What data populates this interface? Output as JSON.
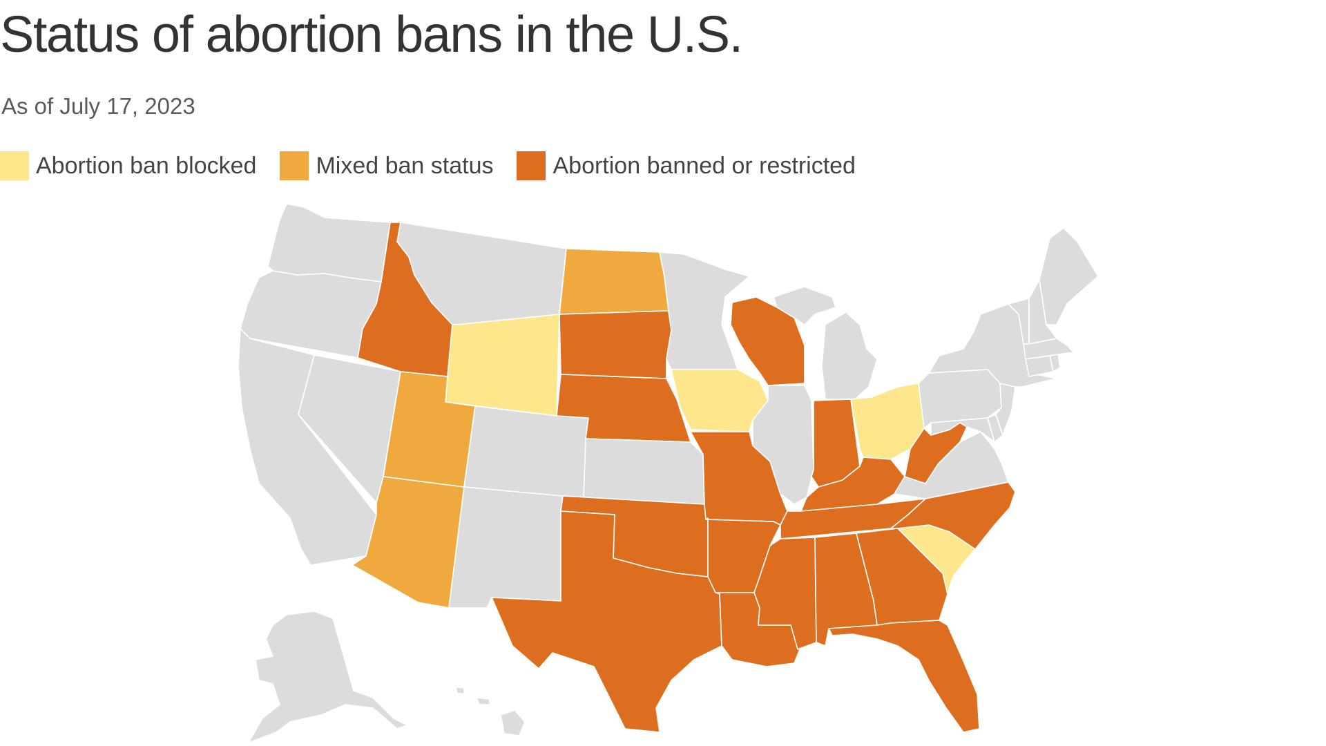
{
  "title": "Status of abortion bans in the U.S.",
  "subtitle": "As of July 17, 2023",
  "colors": {
    "blocked": "#fde68c",
    "mixed": "#f0a93e",
    "banned": "#dd6e1f",
    "no_ban": "#dcdcdc",
    "border": "#ffffff"
  },
  "legend": [
    {
      "key": "blocked",
      "label": "Abortion ban blocked"
    },
    {
      "key": "mixed",
      "label": "Mixed ban status"
    },
    {
      "key": "banned",
      "label": "Abortion banned or restricted"
    }
  ],
  "state_status": {
    "WA": "none",
    "OR": "none",
    "CA": "none",
    "NV": "none",
    "ID": "banned",
    "MT": "none",
    "WY": "blocked",
    "UT": "mixed",
    "AZ": "mixed",
    "CO": "none",
    "NM": "none",
    "ND": "mixed",
    "SD": "banned",
    "NE": "banned",
    "KS": "none",
    "OK": "banned",
    "TX": "banned",
    "MN": "none",
    "IA": "blocked",
    "MO": "banned",
    "AR": "banned",
    "LA": "banned",
    "WI": "banned",
    "IL": "none",
    "MI": "none",
    "IN": "banned",
    "OH": "blocked",
    "KY": "banned",
    "TN": "banned",
    "MS": "banned",
    "AL": "banned",
    "GA": "banned",
    "FL": "banned",
    "SC": "blocked",
    "NC": "banned",
    "VA": "none",
    "WV": "banned",
    "MD": "none",
    "DE": "none",
    "PA": "none",
    "NJ": "none",
    "NY": "none",
    "CT": "none",
    "RI": "none",
    "MA": "none",
    "VT": "none",
    "NH": "none",
    "ME": "none",
    "AK": "none",
    "HI": "none"
  }
}
